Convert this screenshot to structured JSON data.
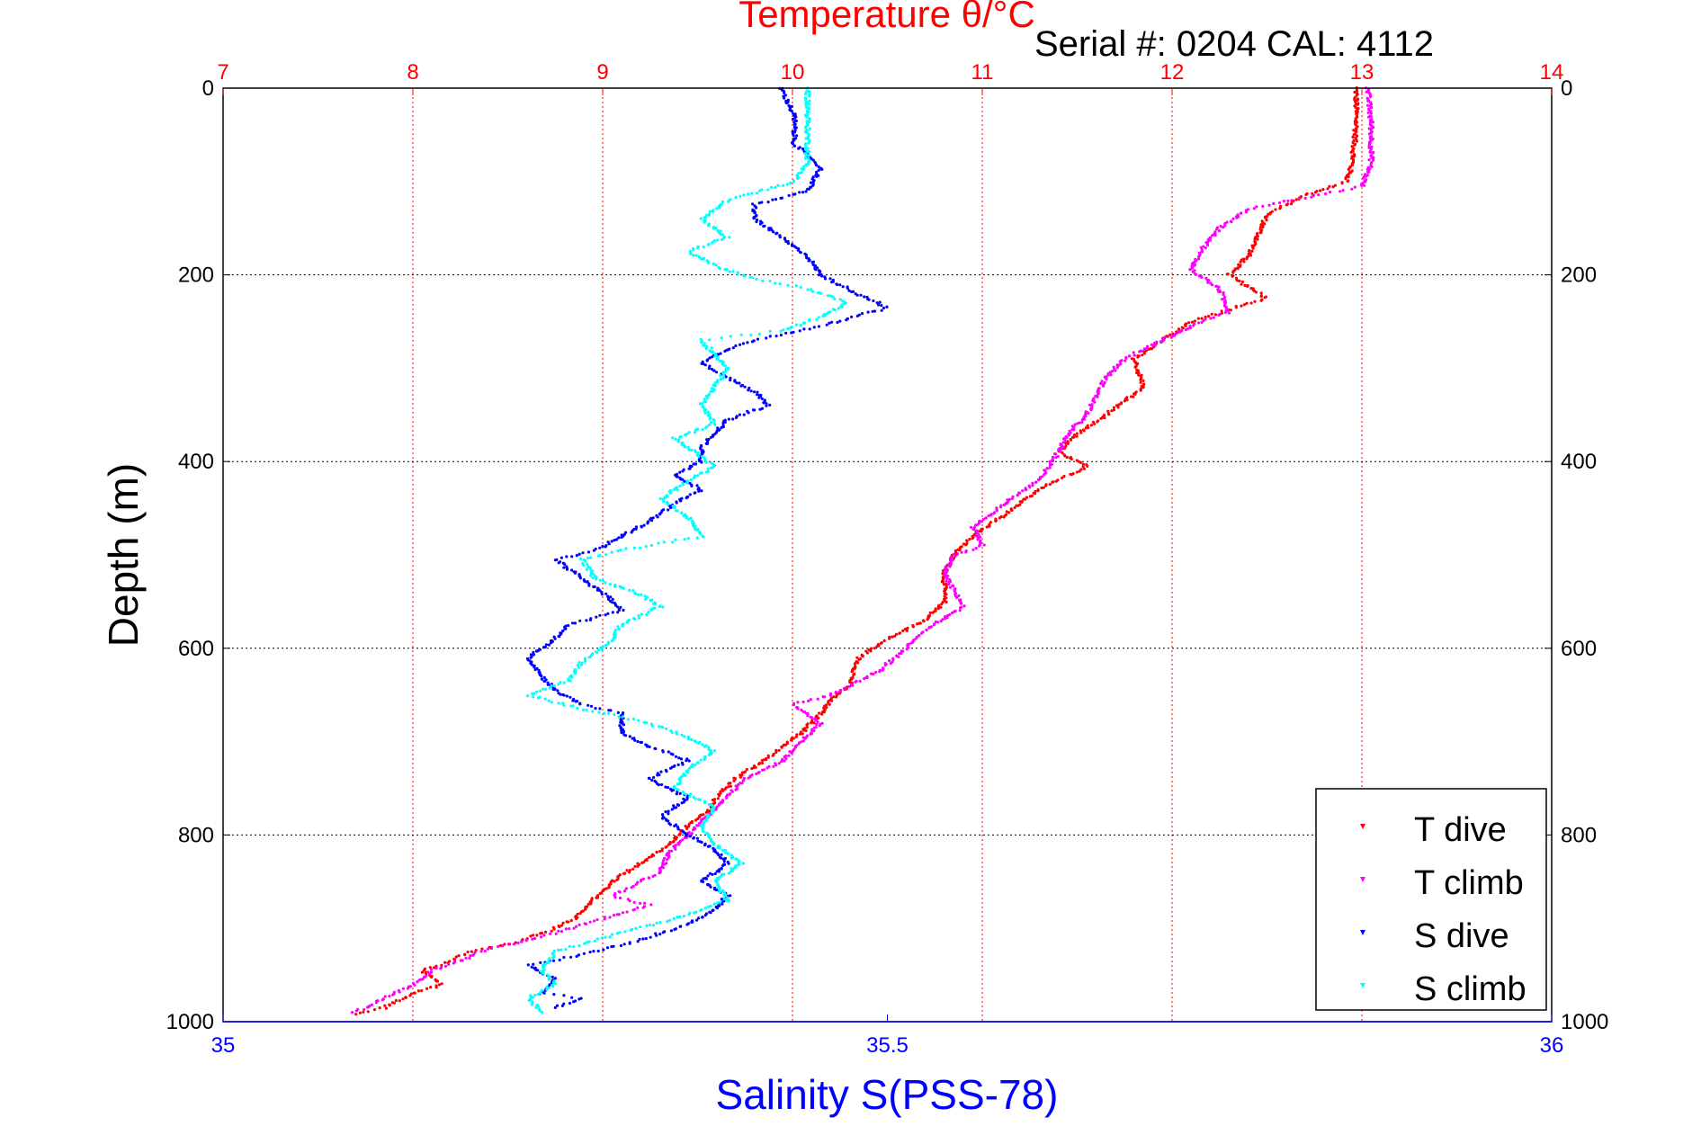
{
  "chart_data": {
    "type": "scatter",
    "title": "Temperature θ/°C",
    "subtitle": "Serial #: 0204  CAL: 4112",
    "xlabel": "Salinity S(PSS-78)",
    "ylabel": "Depth (m)",
    "x_top_label": "Temperature θ/°C",
    "top_axis": {
      "range": [
        7,
        14
      ],
      "ticks": [
        "7",
        "8",
        "9",
        "10",
        "11",
        "12",
        "13",
        "14"
      ],
      "color": "#ff0000"
    },
    "bottom_axis": {
      "range": [
        35,
        36
      ],
      "ticks": [
        "35",
        "35.5",
        "36"
      ],
      "color": "#0000ff"
    },
    "y_axis": {
      "range": [
        0,
        1000
      ],
      "reversed": true,
      "ticks": [
        "0",
        "200",
        "400",
        "600",
        "800",
        "1000"
      ]
    },
    "grid": true,
    "legend_position": "bottom-right",
    "series": [
      {
        "name": "T dive",
        "axis": "temperature",
        "color": "#ff0000",
        "points": [
          [
            12.97,
            0
          ],
          [
            12.97,
            40
          ],
          [
            12.95,
            80
          ],
          [
            12.92,
            100
          ],
          [
            12.7,
            115
          ],
          [
            12.5,
            135
          ],
          [
            12.45,
            160
          ],
          [
            12.4,
            180
          ],
          [
            12.3,
            200
          ],
          [
            12.5,
            225
          ],
          [
            12.1,
            250
          ],
          [
            11.95,
            270
          ],
          [
            11.8,
            290
          ],
          [
            11.85,
            320
          ],
          [
            11.65,
            350
          ],
          [
            11.5,
            370
          ],
          [
            11.4,
            390
          ],
          [
            11.55,
            405
          ],
          [
            11.3,
            430
          ],
          [
            11.1,
            460
          ],
          [
            10.95,
            480
          ],
          [
            10.85,
            500
          ],
          [
            10.8,
            520
          ],
          [
            10.8,
            550
          ],
          [
            10.7,
            570
          ],
          [
            10.5,
            590
          ],
          [
            10.35,
            610
          ],
          [
            10.3,
            640
          ],
          [
            10.2,
            655
          ],
          [
            10.15,
            670
          ],
          [
            10.05,
            690
          ],
          [
            9.95,
            705
          ],
          [
            9.85,
            720
          ],
          [
            9.7,
            740
          ],
          [
            9.6,
            760
          ],
          [
            9.55,
            775
          ],
          [
            9.45,
            790
          ],
          [
            9.35,
            810
          ],
          [
            9.2,
            830
          ],
          [
            9.05,
            850
          ],
          [
            8.95,
            870
          ],
          [
            8.85,
            890
          ],
          [
            8.75,
            900
          ],
          [
            8.55,
            915
          ],
          [
            8.3,
            925
          ],
          [
            8.2,
            935
          ],
          [
            8.05,
            945
          ],
          [
            8.15,
            960
          ],
          [
            8.0,
            970
          ],
          [
            7.85,
            985
          ],
          [
            7.7,
            992
          ]
        ]
      },
      {
        "name": "T climb",
        "axis": "temperature",
        "color": "#ff00ff",
        "points": [
          [
            13.03,
            0
          ],
          [
            13.05,
            40
          ],
          [
            13.05,
            80
          ],
          [
            13.0,
            105
          ],
          [
            12.75,
            115
          ],
          [
            12.4,
            130
          ],
          [
            12.25,
            150
          ],
          [
            12.15,
            175
          ],
          [
            12.1,
            195
          ],
          [
            12.25,
            215
          ],
          [
            12.3,
            240
          ],
          [
            12.15,
            250
          ],
          [
            11.95,
            270
          ],
          [
            11.75,
            290
          ],
          [
            11.65,
            310
          ],
          [
            11.6,
            330
          ],
          [
            11.55,
            350
          ],
          [
            11.45,
            370
          ],
          [
            11.4,
            390
          ],
          [
            11.3,
            420
          ],
          [
            11.15,
            440
          ],
          [
            11.05,
            455
          ],
          [
            10.95,
            470
          ],
          [
            11.0,
            490
          ],
          [
            10.85,
            500
          ],
          [
            10.8,
            520
          ],
          [
            10.9,
            555
          ],
          [
            10.7,
            580
          ],
          [
            10.6,
            600
          ],
          [
            10.45,
            625
          ],
          [
            10.2,
            650
          ],
          [
            10.0,
            660
          ],
          [
            10.15,
            680
          ],
          [
            10.05,
            700
          ],
          [
            9.95,
            720
          ],
          [
            9.75,
            740
          ],
          [
            9.65,
            760
          ],
          [
            9.55,
            780
          ],
          [
            9.45,
            800
          ],
          [
            9.35,
            820
          ],
          [
            9.3,
            840
          ],
          [
            9.2,
            850
          ],
          [
            9.05,
            865
          ],
          [
            9.25,
            875
          ],
          [
            9.0,
            890
          ],
          [
            8.75,
            905
          ],
          [
            8.55,
            915
          ],
          [
            8.35,
            925
          ],
          [
            8.25,
            935
          ],
          [
            8.1,
            945
          ],
          [
            8.05,
            955
          ],
          [
            7.95,
            965
          ],
          [
            7.85,
            975
          ],
          [
            7.75,
            985
          ],
          [
            7.68,
            990
          ]
        ]
      },
      {
        "name": "S dive",
        "axis": "salinity",
        "color": "#0000ff",
        "points": [
          [
            35.42,
            0
          ],
          [
            35.43,
            30
          ],
          [
            35.43,
            60
          ],
          [
            35.45,
            85
          ],
          [
            35.44,
            110
          ],
          [
            35.4,
            125
          ],
          [
            35.4,
            140
          ],
          [
            35.42,
            160
          ],
          [
            35.44,
            180
          ],
          [
            35.45,
            200
          ],
          [
            35.47,
            215
          ],
          [
            35.5,
            235
          ],
          [
            35.45,
            255
          ],
          [
            35.4,
            270
          ],
          [
            35.38,
            280
          ],
          [
            35.36,
            295
          ],
          [
            35.38,
            310
          ],
          [
            35.4,
            325
          ],
          [
            35.41,
            340
          ],
          [
            35.38,
            355
          ],
          [
            35.37,
            370
          ],
          [
            35.36,
            385
          ],
          [
            35.36,
            400
          ],
          [
            35.34,
            415
          ],
          [
            35.36,
            430
          ],
          [
            35.34,
            445
          ],
          [
            35.32,
            465
          ],
          [
            35.3,
            480
          ],
          [
            35.28,
            495
          ],
          [
            35.25,
            505
          ],
          [
            35.27,
            525
          ],
          [
            35.29,
            545
          ],
          [
            35.3,
            560
          ],
          [
            35.26,
            575
          ],
          [
            35.25,
            590
          ],
          [
            35.23,
            610
          ],
          [
            35.24,
            630
          ],
          [
            35.25,
            645
          ],
          [
            35.27,
            660
          ],
          [
            35.3,
            670
          ],
          [
            35.3,
            690
          ],
          [
            35.32,
            705
          ],
          [
            35.35,
            720
          ],
          [
            35.32,
            740
          ],
          [
            35.35,
            760
          ],
          [
            35.33,
            780
          ],
          [
            35.35,
            800
          ],
          [
            35.37,
            815
          ],
          [
            35.38,
            830
          ],
          [
            35.36,
            850
          ],
          [
            35.38,
            865
          ],
          [
            35.37,
            880
          ],
          [
            35.35,
            895
          ],
          [
            35.32,
            910
          ],
          [
            35.28,
            925
          ],
          [
            35.23,
            940
          ],
          [
            35.25,
            955
          ],
          [
            35.24,
            970
          ],
          [
            35.27,
            975
          ],
          [
            35.25,
            985
          ]
        ]
      },
      {
        "name": "S climb",
        "axis": "salinity",
        "color": "#00ffff",
        "points": [
          [
            35.44,
            0
          ],
          [
            35.44,
            30
          ],
          [
            35.44,
            60
          ],
          [
            35.44,
            80
          ],
          [
            35.43,
            100
          ],
          [
            35.38,
            120
          ],
          [
            35.36,
            140
          ],
          [
            35.38,
            160
          ],
          [
            35.35,
            175
          ],
          [
            35.37,
            190
          ],
          [
            35.4,
            205
          ],
          [
            35.44,
            215
          ],
          [
            35.47,
            230
          ],
          [
            35.45,
            245
          ],
          [
            35.42,
            260
          ],
          [
            35.36,
            270
          ],
          [
            35.37,
            285
          ],
          [
            35.38,
            300
          ],
          [
            35.37,
            320
          ],
          [
            35.36,
            340
          ],
          [
            35.37,
            360
          ],
          [
            35.34,
            375
          ],
          [
            35.36,
            395
          ],
          [
            35.37,
            405
          ],
          [
            35.35,
            420
          ],
          [
            35.33,
            440
          ],
          [
            35.35,
            460
          ],
          [
            35.36,
            480
          ],
          [
            35.3,
            495
          ],
          [
            35.27,
            505
          ],
          [
            35.28,
            525
          ],
          [
            35.31,
            540
          ],
          [
            35.33,
            555
          ],
          [
            35.3,
            575
          ],
          [
            35.29,
            595
          ],
          [
            35.27,
            615
          ],
          [
            35.26,
            635
          ],
          [
            35.23,
            650
          ],
          [
            35.27,
            665
          ],
          [
            35.32,
            680
          ],
          [
            35.35,
            695
          ],
          [
            35.37,
            710
          ],
          [
            35.35,
            730
          ],
          [
            35.34,
            750
          ],
          [
            35.37,
            770
          ],
          [
            35.36,
            790
          ],
          [
            35.37,
            810
          ],
          [
            35.39,
            830
          ],
          [
            35.37,
            850
          ],
          [
            35.38,
            870
          ],
          [
            35.34,
            890
          ],
          [
            35.3,
            905
          ],
          [
            35.25,
            925
          ],
          [
            35.24,
            945
          ],
          [
            35.25,
            960
          ],
          [
            35.23,
            975
          ],
          [
            35.24,
            990
          ]
        ]
      }
    ]
  }
}
